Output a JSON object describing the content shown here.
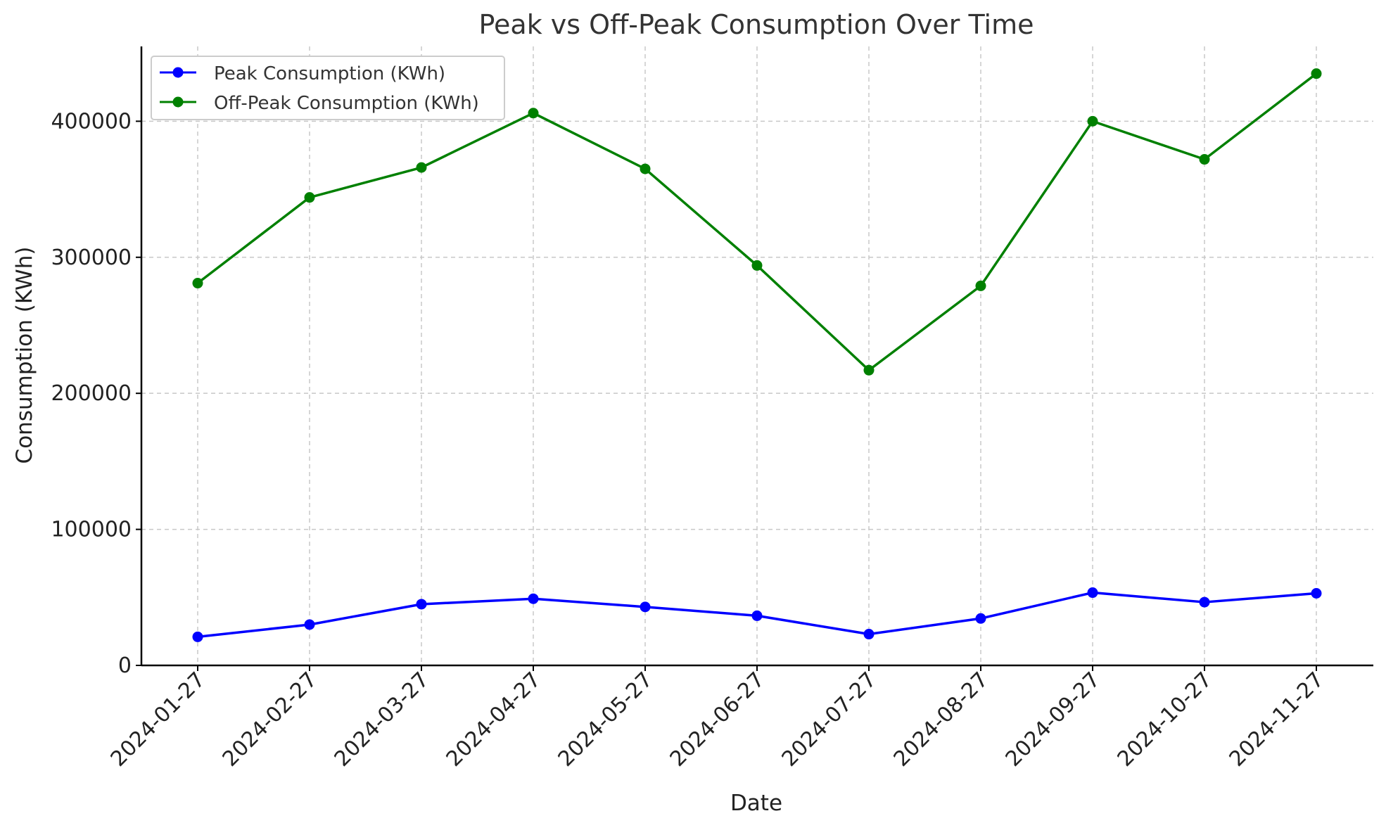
{
  "chart_data": {
    "type": "line",
    "title": "Peak vs Off-Peak Consumption Over Time",
    "xlabel": "Date",
    "ylabel": "Consumption (KWh)",
    "x": [
      "2024-01-27",
      "2024-02-27",
      "2024-03-27",
      "2024-04-27",
      "2024-05-27",
      "2024-06-27",
      "2024-07-27",
      "2024-08-27",
      "2024-09-27",
      "2024-10-27",
      "2024-11-27"
    ],
    "series": [
      {
        "name": "Peak Consumption (KWh)",
        "color": "#0000ff",
        "values": [
          21000,
          30000,
          45000,
          49000,
          43000,
          36500,
          23000,
          34500,
          53500,
          46500,
          53000
        ]
      },
      {
        "name": "Off-Peak Consumption (KWh)",
        "color": "#008000",
        "values": [
          281000,
          344000,
          366000,
          406000,
          365000,
          294000,
          217000,
          279000,
          400000,
          372000,
          435000
        ]
      }
    ],
    "ylim": [
      0,
      455000
    ],
    "yticks": [
      0,
      100000,
      200000,
      300000,
      400000
    ],
    "ytick_labels": [
      "0",
      "100000",
      "200000",
      "300000",
      "400000"
    ],
    "grid": true,
    "legend_position": "top-left"
  }
}
